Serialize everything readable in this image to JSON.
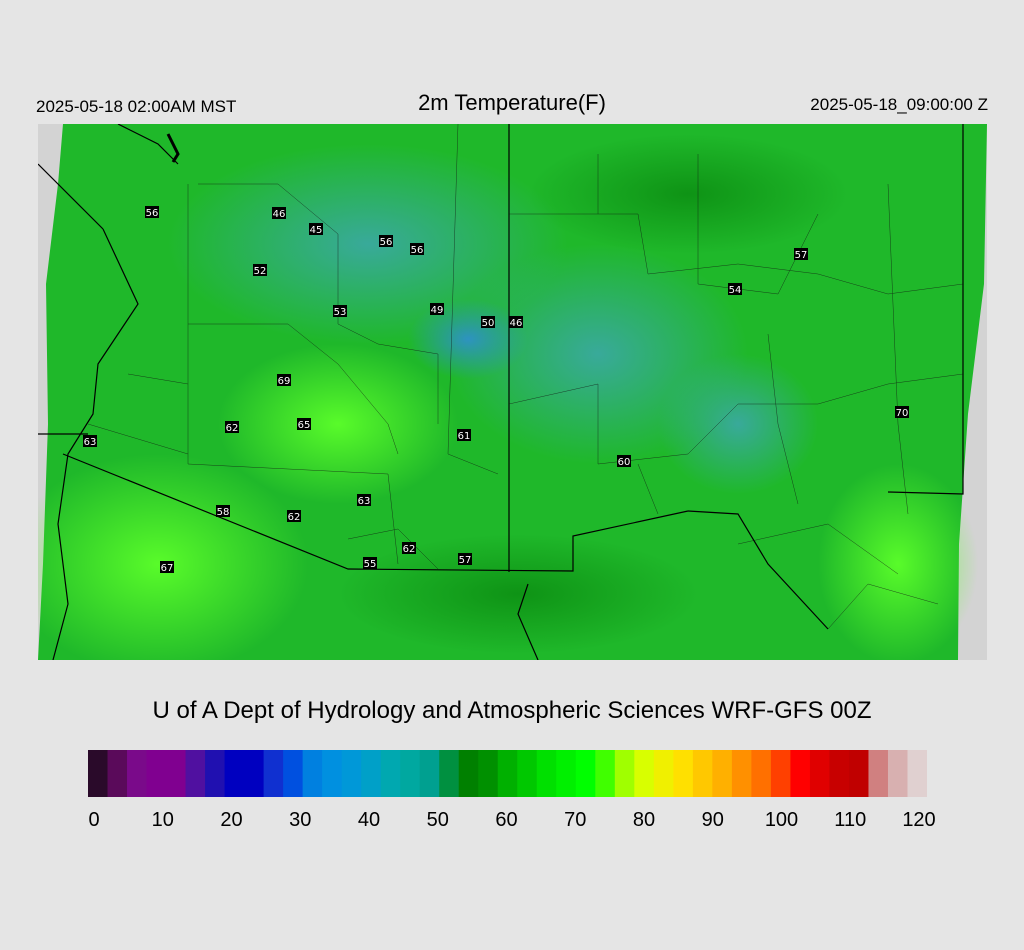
{
  "header": {
    "valid_local": "2025-05-18 02:00AM MST",
    "title": "2m Temperature(F)",
    "valid_utc": "2025-05-18_09:00:00 Z"
  },
  "credit": "U of A Dept of Hydrology and Atmospheric Sciences WRF-GFS 00Z",
  "colorbar": {
    "min": 0,
    "max": 120,
    "ticks": [
      "0",
      "10",
      "20",
      "30",
      "40",
      "50",
      "60",
      "70",
      "80",
      "90",
      "100",
      "110",
      "120"
    ],
    "colors": [
      "#2a0a2a",
      "#5a0a5a",
      "#7a0a8a",
      "#800090",
      "#800090",
      "#5010a0",
      "#2010b0",
      "#0000c0",
      "#0000c0",
      "#1030d0",
      "#0050e0",
      "#0080e0",
      "#0090e0",
      "#0098d8",
      "#00a0c8",
      "#00a8b0",
      "#00a8a0",
      "#00a090",
      "#009040",
      "#008000",
      "#009000",
      "#00b000",
      "#00c800",
      "#00e000",
      "#00f000",
      "#00ff00",
      "#40ff00",
      "#a0ff00",
      "#d8ff00",
      "#f0f000",
      "#ffe000",
      "#ffc800",
      "#ffb000",
      "#ff9000",
      "#ff7000",
      "#ff4000",
      "#ff0000",
      "#e00000",
      "#c80000",
      "#c00000",
      "#d08080",
      "#d8b0b0",
      "#e0d0d0"
    ]
  },
  "stations": [
    {
      "label": "56"
    },
    {
      "label": "46"
    },
    {
      "label": "45"
    },
    {
      "label": "56"
    },
    {
      "label": "56"
    },
    {
      "label": "52"
    },
    {
      "label": "53"
    },
    {
      "label": "49"
    },
    {
      "label": "50"
    },
    {
      "label": "46"
    },
    {
      "label": "57"
    },
    {
      "label": "54"
    },
    {
      "label": "69"
    },
    {
      "label": "62"
    },
    {
      "label": "65"
    },
    {
      "label": "61"
    },
    {
      "label": "70"
    },
    {
      "label": "63"
    },
    {
      "label": "60"
    },
    {
      "label": "58"
    },
    {
      "label": "62"
    },
    {
      "label": "63"
    },
    {
      "label": "62"
    },
    {
      "label": "55"
    },
    {
      "label": "57"
    },
    {
      "label": "67"
    }
  ]
}
